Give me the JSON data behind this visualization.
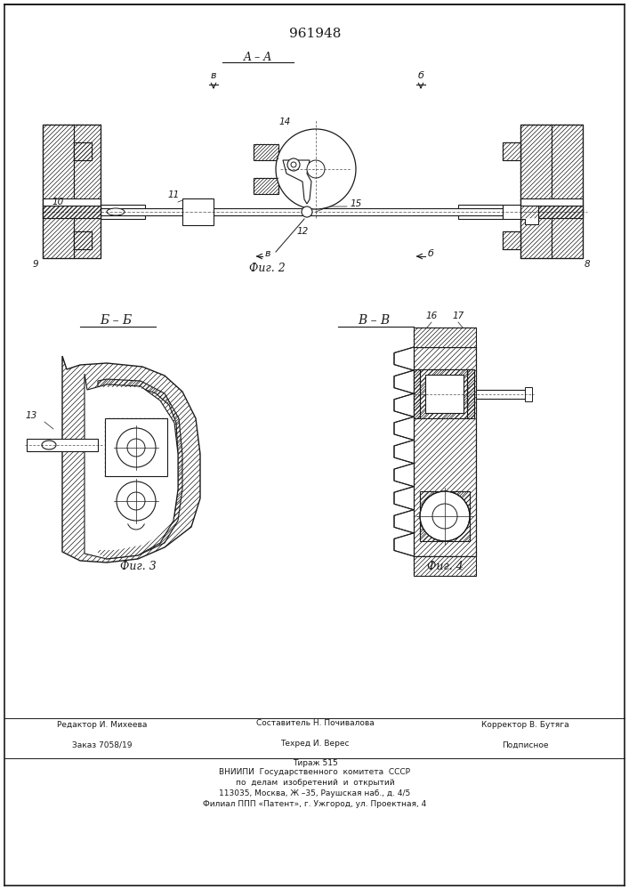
{
  "title_number": "961948",
  "section_aa": "A – A",
  "section_bb": "Б – Б",
  "section_vv": "В – В",
  "fig2": "Фиг. 2",
  "fig3": "Фиг. 3",
  "fig4": "Фиг. 4",
  "footer_left1": "Редактор И. Михеева",
  "footer_left2": "Заказ 7058/19",
  "footer_mid1": "Составитель Н. Почивалова",
  "footer_mid2": "Техред И. Верес",
  "footer_mid3": "Тираж 515",
  "footer_right1": "Корректор В. Бутяга",
  "footer_right2": "Подписное",
  "vniip1": "ВНИИПИ  Государственного  комитета  СССР",
  "vniip2": "по  делам  изобретений  и  открытий",
  "vniip3": "113035, Москва, Ж –35, Раушская наб., д. 4/5",
  "vniip4": "Филиал ППП «Патент», г. Ужгород, ул. Проектная, 4",
  "bg_color": "#ffffff",
  "line_color": "#1a1a1a"
}
